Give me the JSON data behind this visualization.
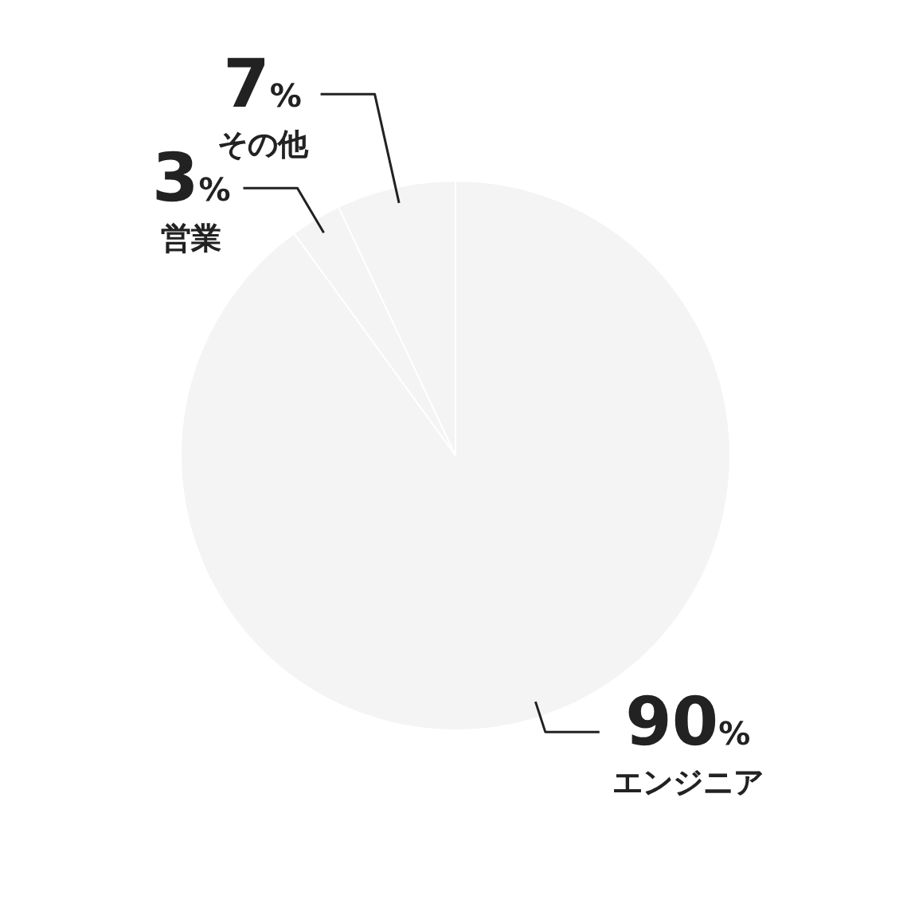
{
  "chart_data": {
    "type": "pie",
    "categories": [
      "エンジニア",
      "営業",
      "その他"
    ],
    "values": [
      90,
      3,
      7
    ],
    "colors": [
      "#f4f4f4",
      "#f4f4f4",
      "#f4f4f4"
    ],
    "value_labels": [
      "90%",
      "3%",
      "7%"
    ],
    "legend": false
  }
}
